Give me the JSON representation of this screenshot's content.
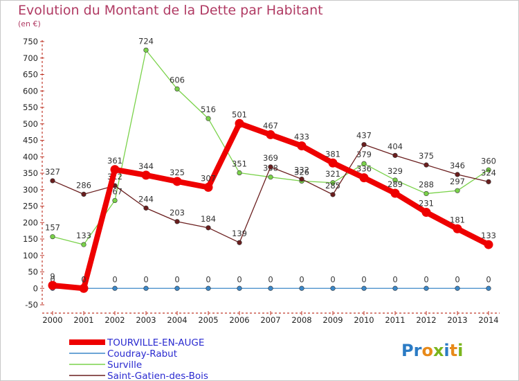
{
  "title": "Evolution du Montant de la Dette par Habitant",
  "subtitle": "(en €)",
  "logo": {
    "letters": [
      "P",
      "r",
      "o",
      "x",
      "i",
      "t",
      "i"
    ],
    "colors": [
      "#2b7bc4",
      "#2b7bc4",
      "#e88a1a",
      "#7ab51d",
      "#2b7bc4",
      "#e88a1a",
      "#7ab51d"
    ]
  },
  "chart_data": {
    "type": "line",
    "title": "Evolution du Montant de la Dette par Habitant",
    "ylabel": "(en €)",
    "x": [
      "2000",
      "2001",
      "2002",
      "2003",
      "2004",
      "2005",
      "2006",
      "2007",
      "2008",
      "2009",
      "2010",
      "2011",
      "2012",
      "2013",
      "2014"
    ],
    "ylim": [
      -50,
      750
    ],
    "yticks": [
      "-50",
      "0",
      "50",
      "100",
      "150",
      "200",
      "250",
      "300",
      "350",
      "400",
      "450",
      "500",
      "550",
      "600",
      "650",
      "700",
      "750"
    ],
    "grid": false,
    "legend_position": "bottom-left",
    "series": [
      {
        "name": "TOURVILLE-EN-AUGE",
        "color": "#ee0000",
        "values": [
          9,
          0,
          361,
          344,
          325,
          307,
          501,
          467,
          433,
          381,
          336,
          289,
          231,
          181,
          133
        ],
        "labels": [
          "9",
          "0",
          "361",
          "344",
          "325",
          "307",
          "501",
          "467",
          "433",
          "381",
          "336",
          "289",
          "231",
          "181",
          "133"
        ]
      },
      {
        "name": "Coudray-Rabut",
        "color": "#3b87c8",
        "values": [
          0,
          0,
          0,
          0,
          0,
          0,
          0,
          0,
          0,
          0,
          0,
          0,
          0,
          0,
          0
        ],
        "labels": [
          "0",
          "0",
          "0",
          "0",
          "0",
          "0",
          "0",
          "0",
          "0",
          "0",
          "0",
          "0",
          "0",
          "0",
          "0"
        ]
      },
      {
        "name": "Surville",
        "color": "#7ad24a",
        "values": [
          157,
          133,
          267,
          724,
          606,
          516,
          351,
          338,
          326,
          321,
          379,
          329,
          288,
          297,
          360
        ],
        "labels": [
          "157",
          "133",
          "267",
          "724",
          "606",
          "516",
          "351",
          "338",
          "326",
          "321",
          "379",
          "329",
          "288",
          "297",
          "360"
        ]
      },
      {
        "name": "Saint-Gatien-des-Bois",
        "color": "#6a1e1e",
        "values": [
          327,
          286,
          312,
          244,
          203,
          184,
          139,
          369,
          332,
          285,
          437,
          404,
          375,
          346,
          324
        ],
        "labels": [
          "327",
          "286",
          "312",
          "244",
          "203",
          "184",
          "139",
          "369",
          "332",
          "285",
          "437",
          "404",
          "375",
          "346",
          "324"
        ]
      }
    ]
  }
}
